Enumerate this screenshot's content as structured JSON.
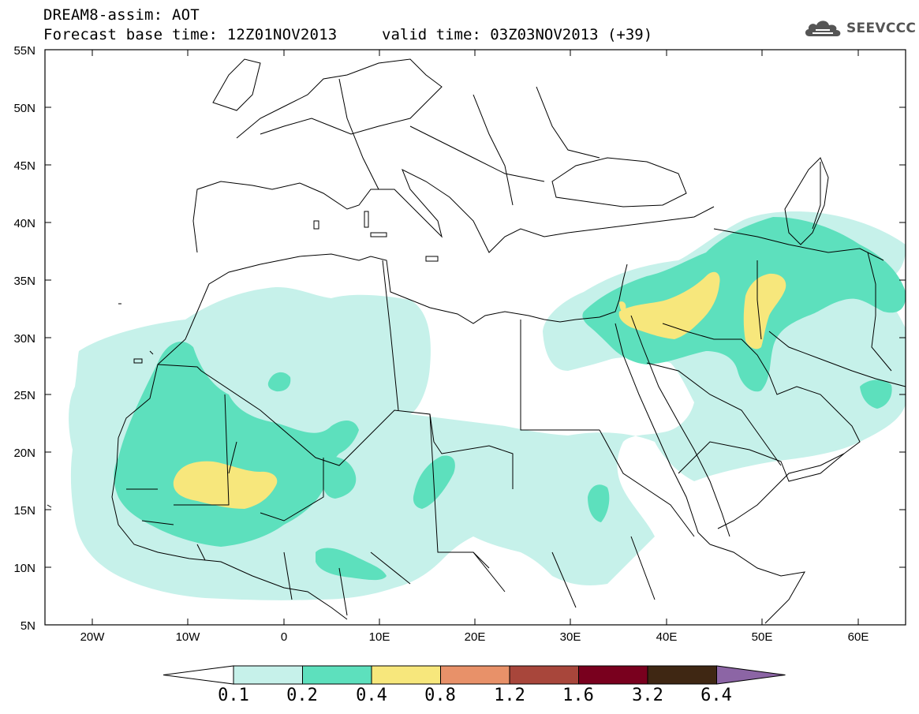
{
  "header": {
    "title": "DREAM8-assim: AOT",
    "base_time": "Forecast base time: 12Z01NOV2013",
    "valid_time": "valid time: 03Z03NOV2013 (+39)"
  },
  "logo": {
    "text": "SEEVCCC",
    "icon": "cloud-icon"
  },
  "map": {
    "lat_labels": [
      "55N",
      "50N",
      "45N",
      "40N",
      "35N",
      "30N",
      "25N",
      "20N",
      "15N",
      "10N",
      "5N"
    ],
    "lon_labels": [
      "20W",
      "10W",
      "0",
      "10E",
      "20E",
      "30E",
      "40E",
      "50E",
      "60E"
    ]
  },
  "legend": {
    "labels": [
      "0.1",
      "0.2",
      "0.4",
      "0.8",
      "1.2",
      "1.6",
      "3.2",
      "6.4"
    ],
    "colors": [
      "#ffffff",
      "#c6f1ea",
      "#5de0bd",
      "#f7e77c",
      "#e89169",
      "#a8463b",
      "#79001e",
      "#3f2713",
      "#8c65a5"
    ]
  }
}
